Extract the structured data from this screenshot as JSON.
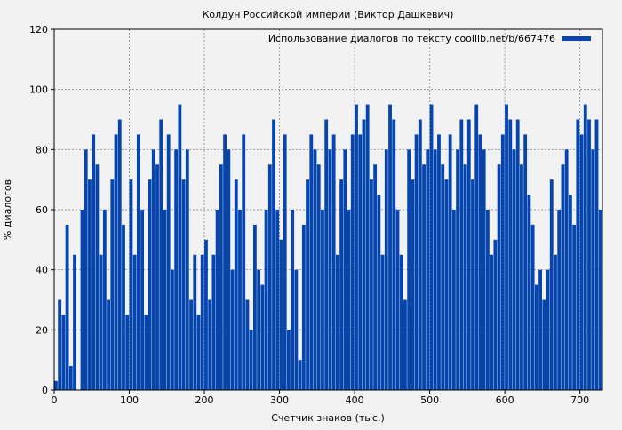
{
  "chart_data": {
    "type": "bar",
    "title": "Колдун Российской империи (Виктор Дашкевич)",
    "xlabel": "Счетчик знаков (тыс.)",
    "ylabel": "% диалогов",
    "legend": "Использование диалогов по тексту coollib.net/b/667476",
    "legend_position": "top-right",
    "xlim": [
      0,
      730
    ],
    "ylim": [
      0,
      120
    ],
    "xticks": [
      "0",
      "100",
      "200",
      "300",
      "400",
      "500",
      "600",
      "700"
    ],
    "yticks": [
      "0",
      "20",
      "40",
      "60",
      "80",
      "100",
      "120"
    ],
    "grid": true,
    "bin_width": 5,
    "bar_color": "#0645ad",
    "x_start": 0,
    "values": [
      3,
      30,
      25,
      55,
      8,
      45,
      0,
      60,
      80,
      70,
      85,
      75,
      45,
      60,
      30,
      70,
      85,
      90,
      55,
      25,
      70,
      45,
      85,
      60,
      25,
      70,
      80,
      75,
      90,
      60,
      85,
      40,
      80,
      95,
      70,
      80,
      30,
      45,
      25,
      45,
      50,
      30,
      45,
      60,
      75,
      85,
      80,
      40,
      70,
      60,
      85,
      30,
      20,
      55,
      40,
      35,
      60,
      75,
      90,
      60,
      50,
      85,
      20,
      60,
      40,
      10,
      55,
      70,
      85,
      80,
      75,
      60,
      90,
      80,
      85,
      45,
      70,
      80,
      60,
      85,
      95,
      85,
      90,
      95,
      70,
      75,
      65,
      45,
      80,
      95,
      90,
      60,
      45,
      30,
      80,
      70,
      85,
      90,
      75,
      80,
      95,
      80,
      85,
      75,
      70,
      85,
      60,
      80,
      90,
      75,
      90,
      70,
      95,
      85,
      80,
      60,
      45,
      50,
      75,
      85,
      95,
      90,
      80,
      90,
      75,
      85,
      65,
      55,
      35,
      40,
      30,
      40,
      70,
      45,
      60,
      75,
      80,
      65,
      55,
      90,
      85,
      95,
      90,
      80,
      90,
      60
    ]
  }
}
